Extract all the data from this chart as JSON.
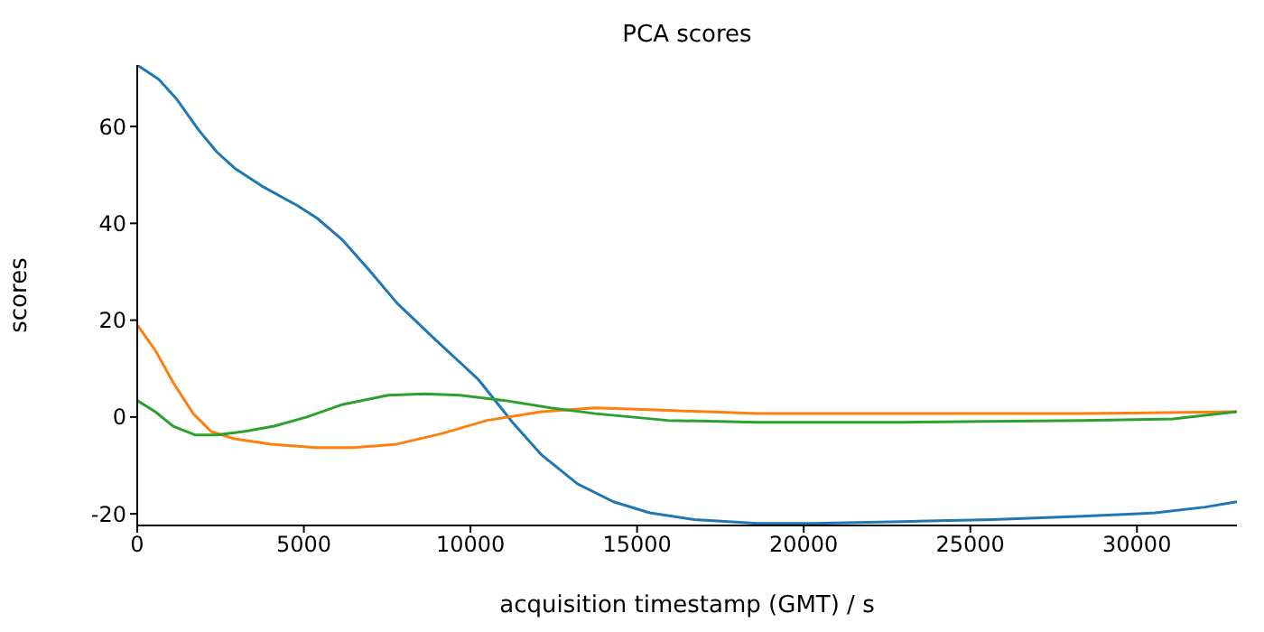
{
  "chart_data": {
    "type": "line",
    "title": "PCA scores",
    "xlabel": "acquisition timestamp (GMT) / s",
    "ylabel": "scores",
    "xlim": [
      0,
      33000
    ],
    "ylim": [
      -22.4,
      72.7
    ],
    "xticks": [
      0,
      5000,
      10000,
      15000,
      20000,
      25000,
      30000
    ],
    "yticks": [
      -20,
      0,
      20,
      40,
      60
    ],
    "grid": false,
    "legend": false,
    "marker": "none",
    "line_style": "solid",
    "series": [
      {
        "color": "#1f77b4",
        "x": [
          0,
          650,
          1190,
          1840,
          2380,
          2920,
          3740,
          4820,
          5410,
          6170,
          6980,
          7800,
          8880,
          10230,
          11260,
          12130,
          13210,
          14290,
          15380,
          16730,
          18620,
          20250,
          22960,
          25660,
          28370,
          30540,
          32050,
          33000
        ],
        "values": [
          72.7,
          69.7,
          65.6,
          59.3,
          54.8,
          51.4,
          47.7,
          43.6,
          41.0,
          36.5,
          30.2,
          23.5,
          16.4,
          7.8,
          -1.1,
          -7.8,
          -13.8,
          -17.5,
          -19.8,
          -21.2,
          -22.0,
          -22.0,
          -21.6,
          -21.2,
          -20.5,
          -19.8,
          -18.6,
          -17.5
        ]
      },
      {
        "color": "#ff7f0e",
        "x": [
          0,
          540,
          1080,
          1680,
          2220,
          2920,
          4010,
          5360,
          6500,
          7800,
          9150,
          10500,
          12130,
          13750,
          15380,
          18620,
          22960,
          28370,
          33000
        ],
        "values": [
          19.0,
          13.8,
          7.1,
          0.7,
          -3.0,
          -4.5,
          -5.6,
          -6.3,
          -6.3,
          -5.6,
          -3.4,
          -0.7,
          1.1,
          1.9,
          1.5,
          0.7,
          0.7,
          0.7,
          1.1
        ]
      },
      {
        "color": "#2ca02c",
        "x": [
          0,
          540,
          1080,
          1730,
          2380,
          3190,
          4110,
          5090,
          6170,
          7530,
          8610,
          9690,
          11040,
          12400,
          13750,
          15920,
          18620,
          22960,
          28370,
          31080,
          33000
        ],
        "values": [
          3.4,
          1.1,
          -1.9,
          -3.7,
          -3.7,
          -3.0,
          -1.9,
          0.0,
          2.6,
          4.5,
          4.8,
          4.5,
          3.4,
          1.9,
          0.7,
          -0.7,
          -1.1,
          -1.1,
          -0.7,
          -0.4,
          1.1
        ]
      }
    ]
  }
}
